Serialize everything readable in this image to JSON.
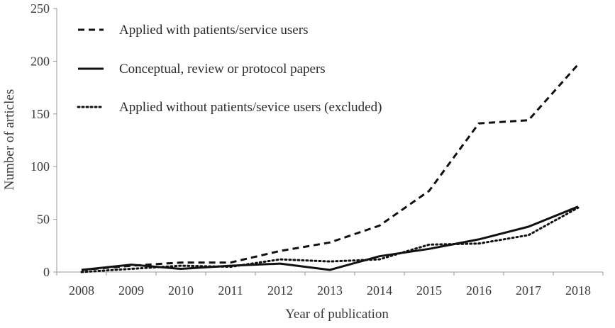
{
  "chart_data": {
    "type": "line",
    "title": "",
    "xlabel": "Year of publication",
    "ylabel": "Number of articles",
    "ylim": [
      0,
      250
    ],
    "yticks": [
      0,
      50,
      100,
      150,
      200,
      250
    ],
    "grid": false,
    "legend_position": "top-left",
    "categories": [
      "2008",
      "2009",
      "2010",
      "2011",
      "2012",
      "2013",
      "2014",
      "2015",
      "2016",
      "2017",
      "2018"
    ],
    "series": [
      {
        "name": "Applied with patients/service users",
        "line_style": "dashed",
        "color": "#111111",
        "values": [
          2,
          6,
          9,
          9,
          20,
          28,
          44,
          77,
          141,
          144,
          197
        ]
      },
      {
        "name": "Conceptual, review or protocol papers",
        "line_style": "solid",
        "color": "#111111",
        "values": [
          2,
          7,
          3,
          6,
          8,
          2,
          15,
          22,
          31,
          43,
          62
        ]
      },
      {
        "name": "Applied without patients/sevice users (excluded)",
        "line_style": "dotted",
        "color": "#111111",
        "values": [
          0,
          3,
          6,
          5,
          12,
          10,
          12,
          26,
          27,
          35,
          61
        ]
      }
    ]
  }
}
